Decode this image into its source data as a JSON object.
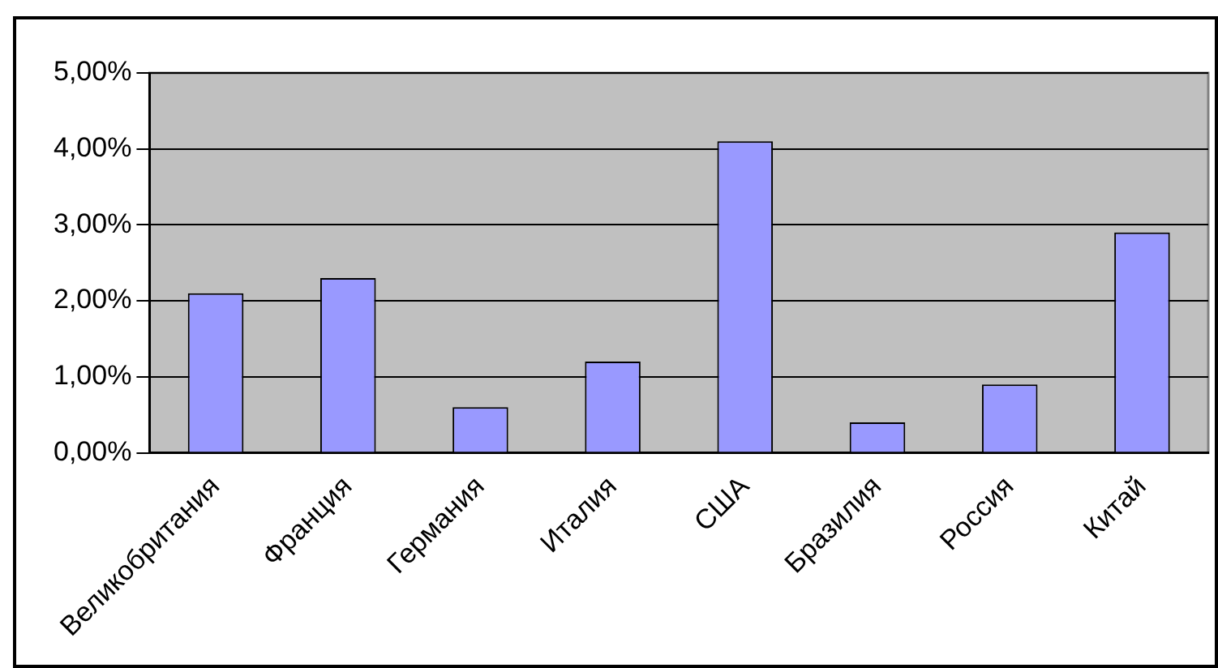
{
  "chart_data": {
    "type": "bar",
    "categories": [
      "Великобритания",
      "Франция",
      "Германия",
      "Италия",
      "США",
      "Бразилия",
      "Россия",
      "Китай"
    ],
    "values": [
      2.1,
      2.3,
      0.6,
      1.2,
      4.1,
      0.4,
      0.9,
      2.9
    ],
    "color": "#9999ff",
    "ylim": [
      0,
      5
    ],
    "yticks": [
      {
        "value": 0,
        "label": "0,00%"
      },
      {
        "value": 1,
        "label": "1,00%"
      },
      {
        "value": 2,
        "label": "2,00%"
      },
      {
        "value": 3,
        "label": "3,00%"
      },
      {
        "value": 4,
        "label": "4,00%"
      },
      {
        "value": 5,
        "label": "5,00%"
      }
    ],
    "grid": "y",
    "legend": false
  }
}
